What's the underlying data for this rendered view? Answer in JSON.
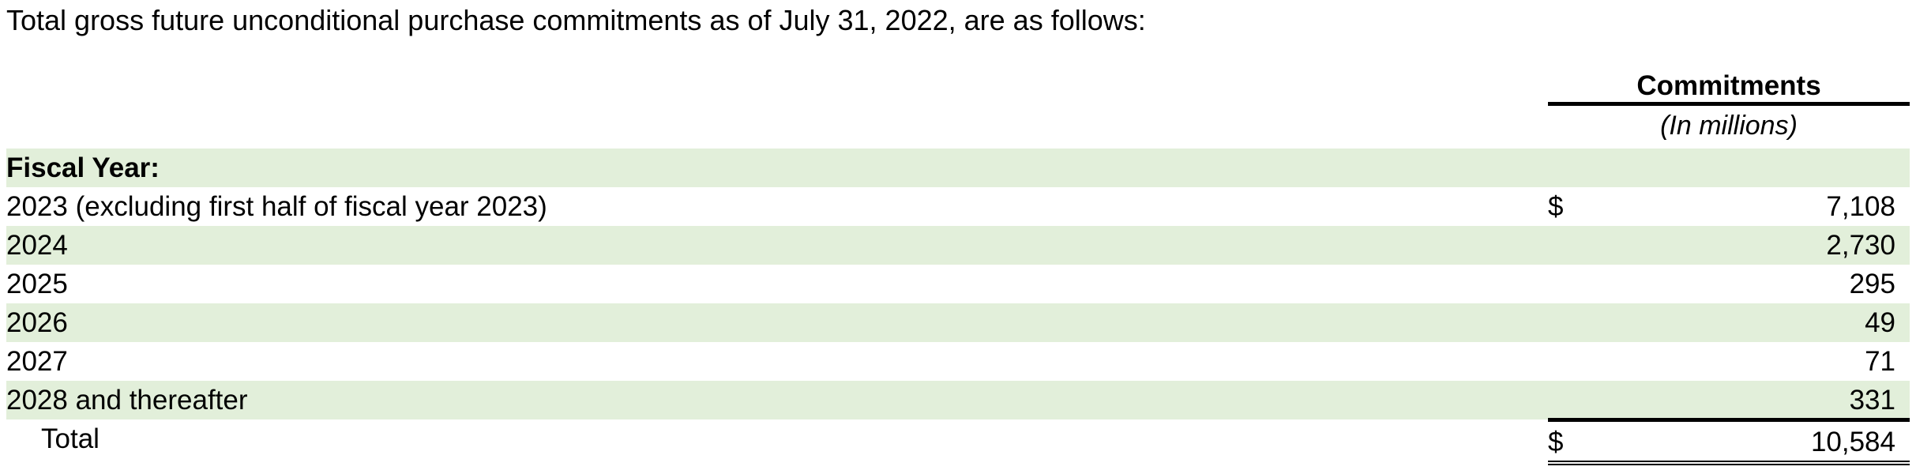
{
  "intro_text": "Total gross future unconditional purchase commitments as of July 31, 2022, are as follows:",
  "table": {
    "column_header": "Commitments",
    "column_unit": "(In millions)",
    "section_title": "Fiscal Year:",
    "rows": [
      {
        "label": "2023 (excluding first half of fiscal year 2023)",
        "currency": "$",
        "value": "7,108"
      },
      {
        "label": "2024",
        "currency": "",
        "value": "2,730"
      },
      {
        "label": "2025",
        "currency": "",
        "value": "295"
      },
      {
        "label": "2026",
        "currency": "",
        "value": "49"
      },
      {
        "label": "2027",
        "currency": "",
        "value": "71"
      },
      {
        "label": "2028 and thereafter",
        "currency": "",
        "value": "331"
      }
    ],
    "total": {
      "label": "Total",
      "currency": "$",
      "value": "10,584"
    }
  },
  "colors": {
    "row_shade": "#e2efda",
    "text": "#000000"
  }
}
